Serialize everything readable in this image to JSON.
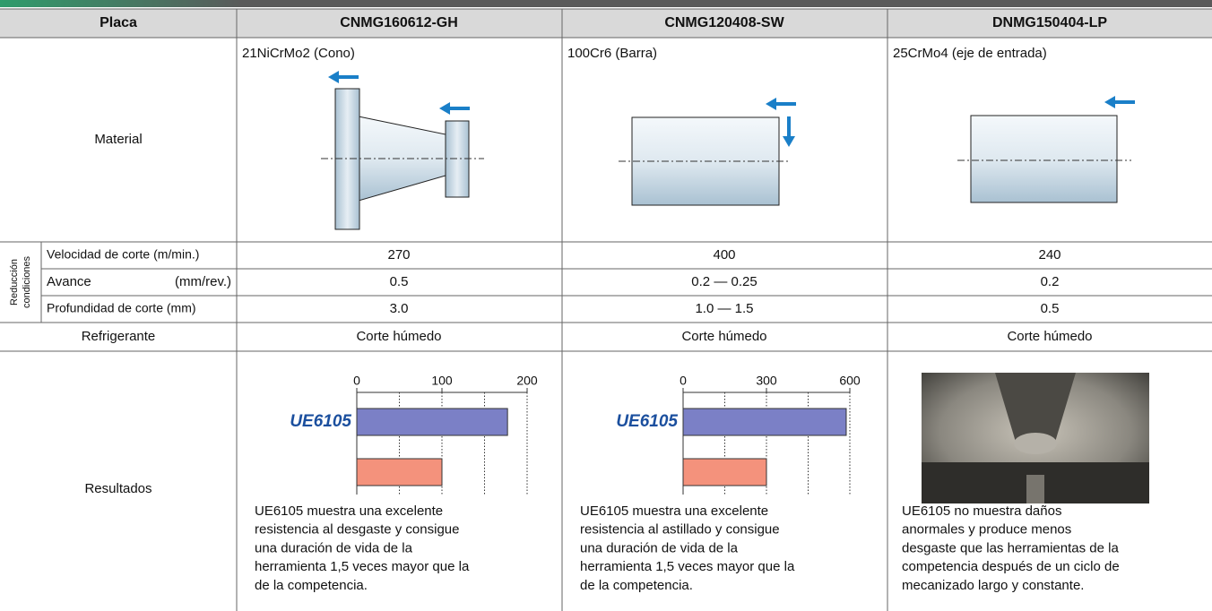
{
  "table": {
    "header": [
      "Placa",
      "CNMG160612-GH",
      "CNMG120408-SW",
      "DNMG150404-LP"
    ],
    "material": {
      "label": "Material",
      "values": [
        "21NiCrMo2 (Cono)",
        "100Cr6 (Barra)",
        "25CrMo4 (eje de entrada)"
      ]
    },
    "conditions_group": [
      "Reducción",
      "condiciones"
    ],
    "conditions": [
      {
        "label": "Velocidad de corte (m/min.)",
        "values": [
          "270",
          "400",
          "240"
        ]
      },
      {
        "label": "Avance",
        "unit": "(mm/rev.)",
        "values": [
          "0.5",
          "0.2 — 0.25",
          "0.2"
        ]
      },
      {
        "label": "Profundidad de corte (mm)",
        "values": [
          "3.0",
          "1.0 — 1.5",
          "0.5"
        ]
      }
    ],
    "coolant": {
      "label": "Refrigerante",
      "values": [
        "Corte húmedo",
        "Corte húmedo",
        "Corte húmedo"
      ]
    },
    "results": {
      "label": "Resultados",
      "texts": [
        [
          "UE6105 muestra una excelente",
          "resistencia al desgaste y consigue",
          "una duración de vida de la",
          "herramienta 1,5 veces mayor que la",
          "de la competencia."
        ],
        [
          "UE6105 muestra una excelente",
          "resistencia al astillado y consigue",
          "una duración de vida de la",
          "herramienta 1,5 veces mayor que la",
          "de la competencia."
        ],
        [
          "UE6105 no muestra daños",
          "anormales y produce menos",
          "desgaste que las herramientas de la",
          "competencia después de un ciclo de",
          "mecanizado largo y constante."
        ]
      ]
    }
  },
  "chart_data": [
    {
      "type": "bar",
      "orientation": "horizontal",
      "series": [
        {
          "name": "UE6105",
          "color": "#7b80c6",
          "values": [
            177
          ]
        },
        {
          "color": "#f4927c",
          "values": [
            100
          ]
        }
      ],
      "xlim": [
        0,
        200
      ],
      "xticks": [
        0,
        100,
        200
      ],
      "grid_lines": [
        50,
        100,
        150,
        200
      ]
    },
    {
      "type": "bar",
      "orientation": "horizontal",
      "series": [
        {
          "name": "UE6105",
          "color": "#7b80c6",
          "values": [
            587
          ]
        },
        {
          "color": "#f4927c",
          "values": [
            300
          ]
        }
      ],
      "xlim": [
        0,
        600
      ],
      "xticks": [
        0,
        300,
        600
      ],
      "grid_lines": [
        150,
        300,
        450,
        600
      ]
    }
  ]
}
